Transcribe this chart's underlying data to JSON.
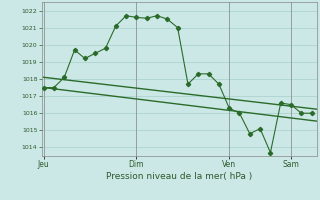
{
  "bg_color": "#cce8e6",
  "grid_color": "#a8d0cc",
  "line_color": "#2a6b2a",
  "xlabel": "Pression niveau de la mer( hPa )",
  "ylim": [
    1013.5,
    1022.5
  ],
  "yticks": [
    1014,
    1015,
    1016,
    1017,
    1018,
    1019,
    1020,
    1021,
    1022
  ],
  "xtick_labels": [
    "Jeu",
    "Dim",
    "Ven",
    "Sam"
  ],
  "xtick_positions": [
    0,
    9,
    18,
    24
  ],
  "xlim": [
    -0.2,
    26.5
  ],
  "series1_x": [
    0,
    1,
    2,
    3,
    4,
    5,
    6,
    7,
    8,
    9,
    10,
    11,
    12,
    13,
    14,
    15,
    16,
    17,
    18,
    19,
    20,
    21,
    22,
    23,
    24,
    25,
    26
  ],
  "series1_y": [
    1017.5,
    1017.5,
    1018.1,
    1019.7,
    1019.2,
    1019.5,
    1019.8,
    1021.1,
    1021.7,
    1021.6,
    1021.55,
    1021.7,
    1021.5,
    1021.0,
    1017.7,
    1018.3,
    1018.3,
    1017.7,
    1016.3,
    1016.0,
    1014.8,
    1015.1,
    1013.7,
    1016.6,
    1016.5,
    1016.0,
    1016.0
  ],
  "series2_x": [
    0,
    27
  ],
  "series2_y": [
    1018.1,
    1016.2
  ],
  "series3_x": [
    0,
    27
  ],
  "series3_y": [
    1017.5,
    1015.5
  ],
  "vline_positions": [
    0,
    9,
    18,
    24
  ]
}
